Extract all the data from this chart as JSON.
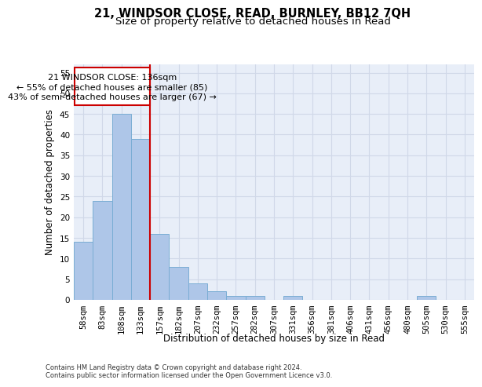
{
  "title1": "21, WINDSOR CLOSE, READ, BURNLEY, BB12 7QH",
  "title2": "Size of property relative to detached houses in Read",
  "xlabel": "Distribution of detached houses by size in Read",
  "ylabel": "Number of detached properties",
  "footer1": "Contains HM Land Registry data © Crown copyright and database right 2024.",
  "footer2": "Contains public sector information licensed under the Open Government Licence v3.0.",
  "annotation_line1": "21 WINDSOR CLOSE: 136sqm",
  "annotation_line2": "← 55% of detached houses are smaller (85)",
  "annotation_line3": "43% of semi-detached houses are larger (67) →",
  "bar_labels": [
    "58sqm",
    "83sqm",
    "108sqm",
    "133sqm",
    "157sqm",
    "182sqm",
    "207sqm",
    "232sqm",
    "257sqm",
    "282sqm",
    "307sqm",
    "331sqm",
    "356sqm",
    "381sqm",
    "406sqm",
    "431sqm",
    "456sqm",
    "480sqm",
    "505sqm",
    "530sqm",
    "555sqm"
  ],
  "bar_values": [
    14,
    24,
    45,
    39,
    16,
    8,
    4,
    2,
    1,
    1,
    0,
    1,
    0,
    0,
    0,
    0,
    0,
    0,
    1,
    0,
    0
  ],
  "bar_color": "#aec6e8",
  "bar_edge_color": "#7aadd4",
  "vline_x": 3.5,
  "vline_color": "#cc0000",
  "annotation_box_color": "#ffffff",
  "annotation_box_edge": "#cc0000",
  "grid_color": "#d0d8e8",
  "background_color": "#e8eef8",
  "ylim": [
    0,
    57
  ],
  "yticks": [
    0,
    5,
    10,
    15,
    20,
    25,
    30,
    35,
    40,
    45,
    50,
    55
  ],
  "title_fontsize": 10.5,
  "subtitle_fontsize": 9.5,
  "annotation_fontsize": 8,
  "axis_label_fontsize": 8.5,
  "tick_fontsize": 7.5,
  "footer_fontsize": 6.0
}
